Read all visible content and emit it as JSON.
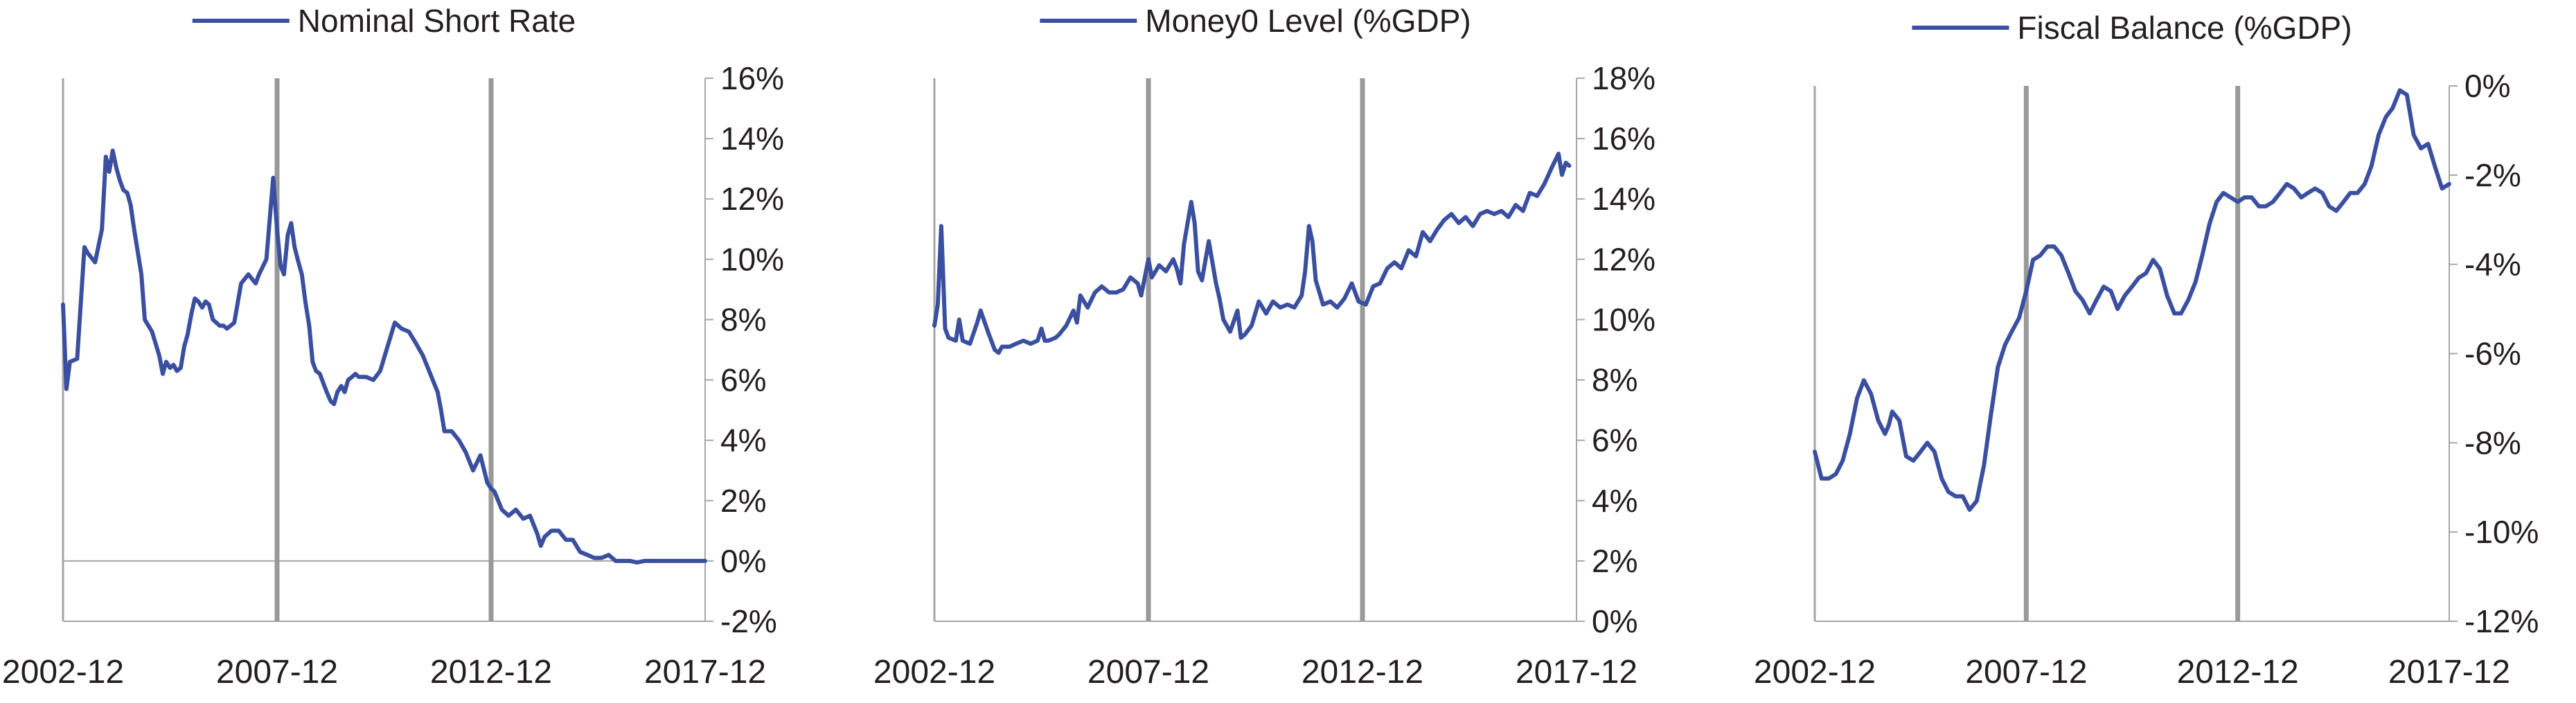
{
  "colors": {
    "series": "#3a4fa0",
    "axis": "#a6a6a6",
    "divider": "#999999",
    "text": "#231f20"
  },
  "x_tick_labels": [
    "2002-12",
    "2007-12",
    "2012-12",
    "2017-12"
  ],
  "chart_data": [
    {
      "type": "line",
      "legend": {
        "label": "Nominal Short Rate",
        "position": "top-center"
      },
      "y_axis": {
        "min": -2,
        "max": 16,
        "step": 2,
        "unit": "%",
        "side": "right",
        "tick_labels": [
          "-2%",
          "0%",
          "2%",
          "4%",
          "6%",
          "8%",
          "10%",
          "12%",
          "14%",
          "16%"
        ]
      },
      "x_axis": {
        "min": 2002.92,
        "max": 2017.92,
        "tick_labels": [
          "2002-12",
          "2007-12",
          "2012-12",
          "2017-12"
        ]
      },
      "dividers": [
        2007.92,
        2012.92
      ],
      "zero_line": true,
      "series": [
        {
          "name": "Nominal Short Rate",
          "x": [
            2002.92,
            2003.0,
            2003.08,
            2003.25,
            2003.42,
            2003.5,
            2003.67,
            2003.83,
            2003.92,
            2004.0,
            2004.08,
            2004.17,
            2004.25,
            2004.33,
            2004.42,
            2004.5,
            2004.58,
            2004.67,
            2004.75,
            2004.83,
            2005.0,
            2005.17,
            2005.25,
            2005.33,
            2005.42,
            2005.5,
            2005.58,
            2005.67,
            2005.75,
            2005.83,
            2005.92,
            2006.0,
            2006.08,
            2006.17,
            2006.25,
            2006.33,
            2006.42,
            2006.5,
            2006.58,
            2006.67,
            2006.75,
            2006.92,
            2007.08,
            2007.25,
            2007.42,
            2007.5,
            2007.67,
            2007.83,
            2007.92,
            2008.0,
            2008.08,
            2008.17,
            2008.25,
            2008.33,
            2008.42,
            2008.5,
            2008.58,
            2008.67,
            2008.75,
            2008.83,
            2008.92,
            2009.0,
            2009.08,
            2009.17,
            2009.25,
            2009.33,
            2009.42,
            2009.5,
            2009.58,
            2009.67,
            2009.75,
            2009.83,
            2010.0,
            2010.17,
            2010.33,
            2010.5,
            2010.67,
            2010.83,
            2011.0,
            2011.17,
            2011.33,
            2011.5,
            2011.67,
            2011.75,
            2011.83,
            2012.0,
            2012.17,
            2012.33,
            2012.5,
            2012.67,
            2012.83,
            2012.92,
            2013.0,
            2013.17,
            2013.33,
            2013.5,
            2013.67,
            2013.83,
            2014.0,
            2014.08,
            2014.17,
            2014.33,
            2014.5,
            2014.67,
            2014.83,
            2015.0,
            2015.17,
            2015.33,
            2015.5,
            2015.67,
            2015.83,
            2016.0,
            2016.17,
            2016.33,
            2016.5,
            2016.67,
            2016.83,
            2017.0,
            2017.17,
            2017.33,
            2017.5,
            2017.67,
            2017.83,
            2017.92
          ],
          "y": [
            8.5,
            5.7,
            6.6,
            6.7,
            10.4,
            10.2,
            9.9,
            11.0,
            13.4,
            12.9,
            13.6,
            13.0,
            12.6,
            12.3,
            12.2,
            11.8,
            11.0,
            10.2,
            9.5,
            8.0,
            7.6,
            6.8,
            6.2,
            6.6,
            6.4,
            6.5,
            6.3,
            6.4,
            7.1,
            7.5,
            8.2,
            8.7,
            8.6,
            8.4,
            8.6,
            8.5,
            8.0,
            7.9,
            7.8,
            7.8,
            7.7,
            7.9,
            9.2,
            9.5,
            9.2,
            9.5,
            10.0,
            12.7,
            11.0,
            9.8,
            9.5,
            10.8,
            11.2,
            10.4,
            9.9,
            9.5,
            8.6,
            7.8,
            6.6,
            6.3,
            6.2,
            5.9,
            5.6,
            5.3,
            5.2,
            5.6,
            5.8,
            5.6,
            6.0,
            6.1,
            6.2,
            6.1,
            6.1,
            6.0,
            6.3,
            7.1,
            7.9,
            7.7,
            7.6,
            7.2,
            6.8,
            6.2,
            5.6,
            5.0,
            4.3,
            4.3,
            4.0,
            3.6,
            3.0,
            3.5,
            2.6,
            2.4,
            2.3,
            1.7,
            1.5,
            1.7,
            1.4,
            1.5,
            0.9,
            0.5,
            0.8,
            1.0,
            1.0,
            0.7,
            0.7,
            0.3,
            0.2,
            0.1,
            0.1,
            0.2,
            0.0,
            0.0,
            0.0,
            -0.05,
            0.0,
            0.0,
            0.0,
            0.0,
            0.0,
            0.0,
            0.0,
            0.0,
            0.0,
            0.0
          ]
        }
      ]
    },
    {
      "type": "line",
      "legend": {
        "label": "Money0 Level (%GDP)",
        "position": "top-center"
      },
      "y_axis": {
        "min": 0,
        "max": 18,
        "step": 2,
        "unit": "%",
        "side": "right",
        "tick_labels": [
          "0%",
          "2%",
          "4%",
          "6%",
          "8%",
          "10%",
          "12%",
          "14%",
          "16%",
          "18%"
        ]
      },
      "x_axis": {
        "min": 2002.92,
        "max": 2017.92,
        "tick_labels": [
          "2002-12",
          "2007-12",
          "2012-12",
          "2017-12"
        ]
      },
      "dividers": [
        2007.92,
        2012.92
      ],
      "zero_line": false,
      "series": [
        {
          "name": "Money0 Level (%GDP)",
          "x": [
            2002.92,
            2003.0,
            2003.08,
            2003.17,
            2003.25,
            2003.42,
            2003.5,
            2003.58,
            2003.75,
            2003.92,
            2004.0,
            2004.17,
            2004.33,
            2004.42,
            2004.5,
            2004.67,
            2004.83,
            2005.0,
            2005.17,
            2005.33,
            2005.42,
            2005.5,
            2005.58,
            2005.75,
            2005.83,
            2006.0,
            2006.17,
            2006.25,
            2006.33,
            2006.5,
            2006.67,
            2006.83,
            2007.0,
            2007.17,
            2007.33,
            2007.5,
            2007.67,
            2007.75,
            2007.92,
            2008.0,
            2008.17,
            2008.33,
            2008.5,
            2008.58,
            2008.67,
            2008.75,
            2008.92,
            2009.0,
            2009.08,
            2009.17,
            2009.33,
            2009.5,
            2009.58,
            2009.67,
            2009.83,
            2010.0,
            2010.08,
            2010.17,
            2010.33,
            2010.5,
            2010.67,
            2010.83,
            2011.0,
            2011.17,
            2011.33,
            2011.5,
            2011.58,
            2011.67,
            2011.75,
            2011.83,
            2012.0,
            2012.17,
            2012.33,
            2012.5,
            2012.67,
            2012.83,
            2013.0,
            2013.17,
            2013.33,
            2013.5,
            2013.67,
            2013.83,
            2014.0,
            2014.17,
            2014.33,
            2014.5,
            2014.67,
            2014.83,
            2015.0,
            2015.17,
            2015.33,
            2015.5,
            2015.67,
            2015.83,
            2016.0,
            2016.17,
            2016.33,
            2016.5,
            2016.67,
            2016.83,
            2017.0,
            2017.17,
            2017.33,
            2017.5,
            2017.58,
            2017.67,
            2017.75
          ],
          "y": [
            9.8,
            10.5,
            13.1,
            9.7,
            9.4,
            9.3,
            10.0,
            9.3,
            9.2,
            9.9,
            10.3,
            9.6,
            9.0,
            8.9,
            9.1,
            9.1,
            9.2,
            9.3,
            9.2,
            9.3,
            9.7,
            9.3,
            9.3,
            9.4,
            9.5,
            9.8,
            10.3,
            9.9,
            10.8,
            10.4,
            10.9,
            11.1,
            10.9,
            10.9,
            11.0,
            11.4,
            11.2,
            10.8,
            12.0,
            11.4,
            11.8,
            11.6,
            12.0,
            11.7,
            11.2,
            12.5,
            13.9,
            13.2,
            11.6,
            11.3,
            12.6,
            11.2,
            10.7,
            10.0,
            9.6,
            10.3,
            9.4,
            9.5,
            9.8,
            10.6,
            10.2,
            10.6,
            10.4,
            10.5,
            10.4,
            10.8,
            11.6,
            13.1,
            12.6,
            11.3,
            10.5,
            10.6,
            10.4,
            10.7,
            11.2,
            10.6,
            10.5,
            11.1,
            11.2,
            11.7,
            11.9,
            11.7,
            12.3,
            12.1,
            12.9,
            12.6,
            13.0,
            13.3,
            13.5,
            13.2,
            13.4,
            13.1,
            13.5,
            13.6,
            13.5,
            13.6,
            13.4,
            13.8,
            13.6,
            14.2,
            14.1,
            14.5,
            15.0,
            15.5,
            14.8,
            15.2,
            15.1
          ]
        }
      ]
    },
    {
      "type": "line",
      "legend": {
        "label": "Fiscal Balance (%GDP)",
        "position": "top-center"
      },
      "y_axis": {
        "min": -12,
        "max": 0,
        "step": 2,
        "unit": "%",
        "side": "right",
        "tick_labels": [
          "-12%",
          "-10%",
          "-8%",
          "-6%",
          "-4%",
          "-2%",
          "0%"
        ]
      },
      "x_axis": {
        "min": 2002.92,
        "max": 2017.92,
        "tick_labels": [
          "2002-12",
          "2007-12",
          "2012-12",
          "2017-12"
        ]
      },
      "dividers": [
        2007.92,
        2012.92
      ],
      "zero_line": false,
      "series": [
        {
          "name": "Fiscal Balance (%GDP)",
          "x": [
            2002.92,
            2003.08,
            2003.25,
            2003.42,
            2003.58,
            2003.75,
            2003.92,
            2004.08,
            2004.25,
            2004.42,
            2004.58,
            2004.67,
            2004.75,
            2004.92,
            2005.08,
            2005.25,
            2005.42,
            2005.58,
            2005.75,
            2005.92,
            2006.08,
            2006.25,
            2006.42,
            2006.58,
            2006.75,
            2006.92,
            2007.08,
            2007.25,
            2007.42,
            2007.58,
            2007.75,
            2007.92,
            2008.08,
            2008.25,
            2008.42,
            2008.58,
            2008.75,
            2008.92,
            2009.08,
            2009.25,
            2009.42,
            2009.58,
            2009.75,
            2009.92,
            2010.08,
            2010.25,
            2010.42,
            2010.58,
            2010.75,
            2010.92,
            2011.08,
            2011.25,
            2011.42,
            2011.58,
            2011.75,
            2011.92,
            2012.08,
            2012.25,
            2012.42,
            2012.58,
            2012.75,
            2012.92,
            2013.08,
            2013.25,
            2013.42,
            2013.58,
            2013.75,
            2013.92,
            2014.08,
            2014.25,
            2014.42,
            2014.58,
            2014.75,
            2014.92,
            2015.08,
            2015.25,
            2015.42,
            2015.58,
            2015.75,
            2015.92,
            2016.08,
            2016.25,
            2016.42,
            2016.58,
            2016.75,
            2016.92,
            2017.08,
            2017.25,
            2017.42,
            2017.58,
            2017.75,
            2017.92
          ],
          "y": [
            -8.2,
            -8.8,
            -8.8,
            -8.7,
            -8.4,
            -7.8,
            -7.0,
            -6.6,
            -6.9,
            -7.5,
            -7.8,
            -7.6,
            -7.3,
            -7.5,
            -8.3,
            -8.4,
            -8.2,
            -8.0,
            -8.2,
            -8.8,
            -9.1,
            -9.2,
            -9.2,
            -9.5,
            -9.3,
            -8.5,
            -7.4,
            -6.3,
            -5.8,
            -5.5,
            -5.2,
            -4.6,
            -3.9,
            -3.8,
            -3.6,
            -3.6,
            -3.8,
            -4.2,
            -4.6,
            -4.8,
            -5.1,
            -4.8,
            -4.5,
            -4.6,
            -5.0,
            -4.7,
            -4.5,
            -4.3,
            -4.2,
            -3.9,
            -4.1,
            -4.7,
            -5.1,
            -5.1,
            -4.8,
            -4.4,
            -3.8,
            -3.1,
            -2.6,
            -2.4,
            -2.5,
            -2.6,
            -2.5,
            -2.5,
            -2.7,
            -2.7,
            -2.6,
            -2.4,
            -2.2,
            -2.3,
            -2.5,
            -2.4,
            -2.3,
            -2.4,
            -2.7,
            -2.8,
            -2.6,
            -2.4,
            -2.4,
            -2.2,
            -1.8,
            -1.1,
            -0.7,
            -0.5,
            -0.1,
            -0.2,
            -1.1,
            -1.4,
            -1.3,
            -1.8,
            -2.3,
            -2.2
          ]
        }
      ]
    }
  ]
}
